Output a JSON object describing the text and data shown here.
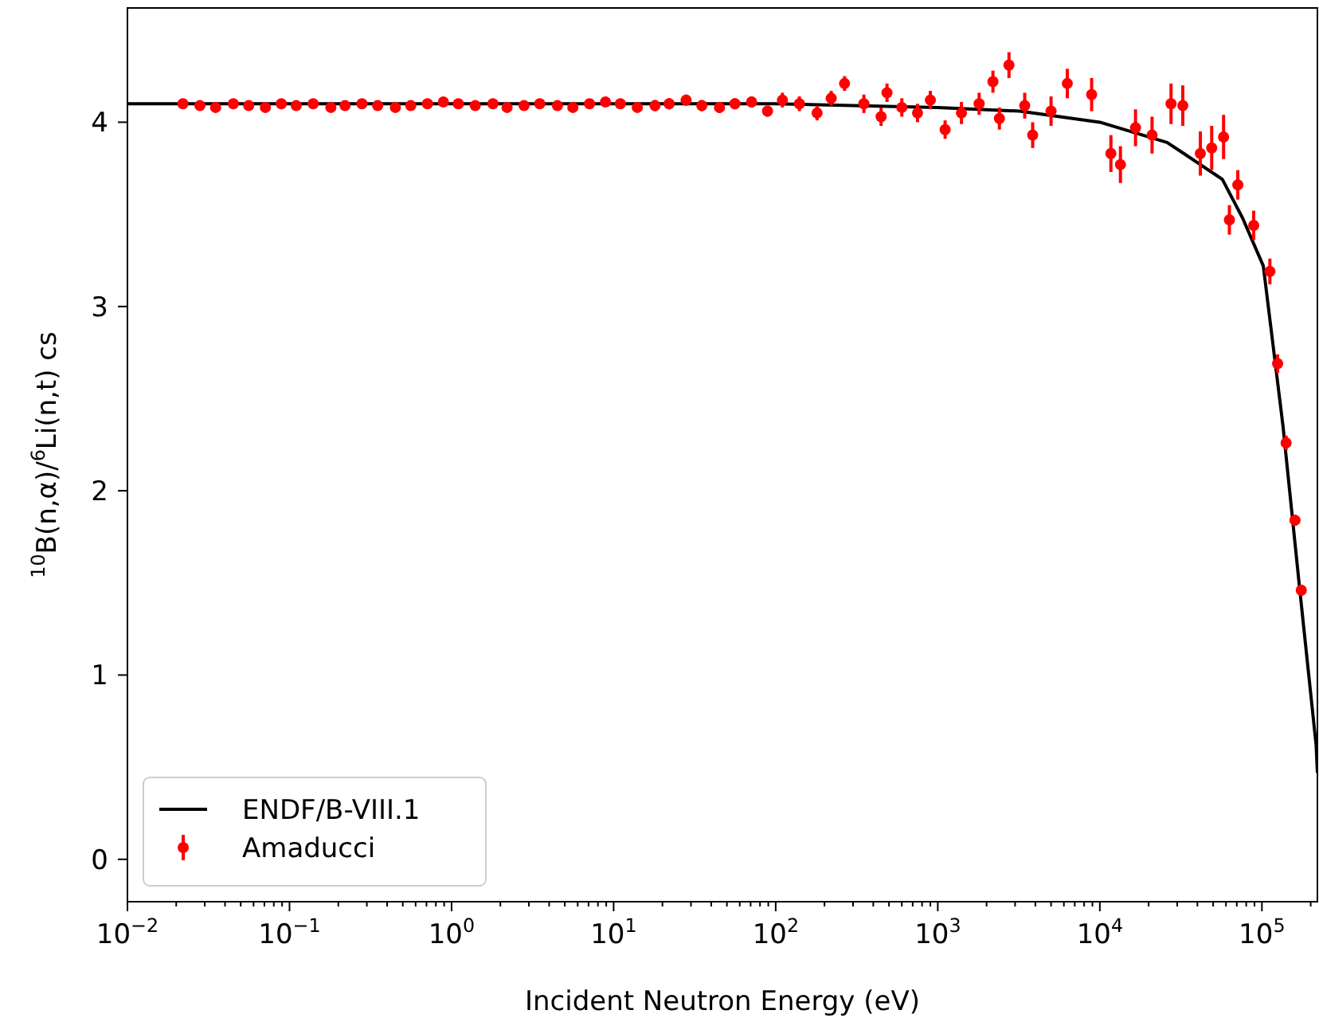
{
  "chart_data": {
    "type": "scatter",
    "xlabel": "Incident Neutron Energy (eV)",
    "ylabel": "$^{10}$B(n,α)/$^{6}$Li(n,t) cs",
    "log": "x",
    "grid": false,
    "legend": "bottom left",
    "xlim": [
      0.01,
      220000
    ],
    "ylim": [
      -0.23,
      4.62
    ],
    "yticks": [
      0,
      1,
      2,
      3,
      4
    ],
    "xticks": [
      {
        "value": 0.01,
        "label": "10$^{−2}$"
      },
      {
        "value": 0.1,
        "label": "10$^{−1}$"
      },
      {
        "value": 1,
        "label": "10$^{0}$"
      },
      {
        "value": 10,
        "label": "10$^{1}$"
      },
      {
        "value": 100,
        "label": "10$^{2}$"
      },
      {
        "value": 1000,
        "label": "10$^{3}$"
      },
      {
        "value": 10000,
        "label": "10$^{4}$"
      },
      {
        "value": 100000,
        "label": "10$^{5}$"
      },
      {
        "value": 0.02,
        "label": null
      },
      {
        "value": 0.03,
        "label": null
      },
      {
        "value": 0.04,
        "label": null
      },
      {
        "value": 0.05,
        "label": null
      },
      {
        "value": 0.06,
        "label": null
      },
      {
        "value": 0.07,
        "label": null
      },
      {
        "value": 0.08,
        "label": null
      },
      {
        "value": 0.09,
        "label": null
      },
      {
        "value": 0.2,
        "label": null
      },
      {
        "value": 0.3,
        "label": null
      },
      {
        "value": 0.4,
        "label": null
      },
      {
        "value": 0.5,
        "label": null
      },
      {
        "value": 0.6,
        "label": null
      },
      {
        "value": 0.7,
        "label": null
      },
      {
        "value": 0.8,
        "label": null
      },
      {
        "value": 0.9,
        "label": null
      },
      {
        "value": 2,
        "label": null
      },
      {
        "value": 3,
        "label": null
      },
      {
        "value": 4,
        "label": null
      },
      {
        "value": 5,
        "label": null
      },
      {
        "value": 6,
        "label": null
      },
      {
        "value": 7,
        "label": null
      },
      {
        "value": 8,
        "label": null
      },
      {
        "value": 9,
        "label": null
      },
      {
        "value": 20,
        "label": null
      },
      {
        "value": 30,
        "label": null
      },
      {
        "value": 40,
        "label": null
      },
      {
        "value": 50,
        "label": null
      },
      {
        "value": 60,
        "label": null
      },
      {
        "value": 70,
        "label": null
      },
      {
        "value": 80,
        "label": null
      },
      {
        "value": 90,
        "label": null
      },
      {
        "value": 200,
        "label": null
      },
      {
        "value": 300,
        "label": null
      },
      {
        "value": 400,
        "label": null
      },
      {
        "value": 500,
        "label": null
      },
      {
        "value": 600,
        "label": null
      },
      {
        "value": 700,
        "label": null
      },
      {
        "value": 800,
        "label": null
      },
      {
        "value": 900,
        "label": null
      },
      {
        "value": 2000,
        "label": null
      },
      {
        "value": 3000,
        "label": null
      },
      {
        "value": 4000,
        "label": null
      },
      {
        "value": 5000,
        "label": null
      },
      {
        "value": 6000,
        "label": null
      },
      {
        "value": 7000,
        "label": null
      },
      {
        "value": 8000,
        "label": null
      },
      {
        "value": 9000,
        "label": null
      },
      {
        "value": 20000,
        "label": null
      },
      {
        "value": 30000,
        "label": null
      },
      {
        "value": 40000,
        "label": null
      },
      {
        "value": 50000,
        "label": null
      },
      {
        "value": 60000,
        "label": null
      },
      {
        "value": 70000,
        "label": null
      },
      {
        "value": 80000,
        "label": null
      },
      {
        "value": 90000,
        "label": null
      },
      {
        "value": 200000,
        "label": null
      }
    ],
    "series": [
      {
        "name": "ENDF/B-VIII.1",
        "type": "line",
        "color": "#000000",
        "line_style": "solid",
        "x": [
          0.01,
          1,
          100,
          1000,
          3200,
          10000,
          26000,
          33000,
          57000,
          76000,
          102000,
          135000,
          170000,
          216000,
          220000
        ],
        "values": [
          4.1,
          4.1,
          4.1,
          4.08,
          4.06,
          4.0,
          3.89,
          3.83,
          3.69,
          3.48,
          3.22,
          2.35,
          1.49,
          0.62,
          0.47
        ]
      },
      {
        "name": "Amaducci",
        "color": "#ff0000",
        "marker": "circle",
        "x": [
          0.022,
          0.028,
          0.035,
          0.045,
          0.056,
          0.071,
          0.089,
          0.11,
          0.14,
          0.18,
          0.22,
          0.28,
          0.35,
          0.45,
          0.56,
          0.71,
          0.89,
          1.1,
          1.4,
          1.8,
          2.2,
          2.8,
          3.5,
          4.5,
          5.6,
          7.1,
          8.9,
          11,
          14,
          18,
          22,
          28,
          35,
          45,
          56,
          71,
          89,
          110,
          140,
          180,
          220,
          266,
          350,
          447,
          486,
          600,
          750,
          900,
          1110,
          1400,
          1800,
          2190,
          2400,
          2750,
          3440,
          3850,
          5000,
          6300,
          8900,
          11700,
          13400,
          16600,
          21000,
          27500,
          32500,
          41700,
          49000,
          58000,
          63000,
          71000,
          89000,
          112000,
          125000,
          141000,
          160000,
          175000
        ],
        "values": [
          4.1,
          4.09,
          4.08,
          4.1,
          4.09,
          4.08,
          4.1,
          4.09,
          4.1,
          4.08,
          4.09,
          4.1,
          4.09,
          4.08,
          4.09,
          4.1,
          4.11,
          4.1,
          4.09,
          4.1,
          4.08,
          4.09,
          4.1,
          4.09,
          4.08,
          4.1,
          4.11,
          4.1,
          4.08,
          4.09,
          4.1,
          4.12,
          4.09,
          4.08,
          4.1,
          4.11,
          4.06,
          4.12,
          4.1,
          4.05,
          4.13,
          4.21,
          4.1,
          4.03,
          4.16,
          4.08,
          4.05,
          4.12,
          3.96,
          4.05,
          4.1,
          4.22,
          4.02,
          4.31,
          4.09,
          3.93,
          4.06,
          4.21,
          4.15,
          3.83,
          3.77,
          3.97,
          3.93,
          4.1,
          4.09,
          3.83,
          3.86,
          3.92,
          3.47,
          3.66,
          3.44,
          3.19,
          2.69,
          2.26,
          1.84,
          1.46
        ],
        "errors": [
          0.02,
          0.02,
          0.02,
          0.02,
          0.02,
          0.02,
          0.02,
          0.02,
          0.02,
          0.02,
          0.02,
          0.02,
          0.02,
          0.02,
          0.02,
          0.02,
          0.02,
          0.02,
          0.02,
          0.02,
          0.02,
          0.02,
          0.02,
          0.02,
          0.02,
          0.02,
          0.02,
          0.02,
          0.02,
          0.03,
          0.03,
          0.03,
          0.03,
          0.03,
          0.03,
          0.03,
          0.03,
          0.04,
          0.04,
          0.04,
          0.04,
          0.04,
          0.05,
          0.05,
          0.05,
          0.05,
          0.05,
          0.05,
          0.05,
          0.06,
          0.06,
          0.06,
          0.06,
          0.07,
          0.07,
          0.07,
          0.08,
          0.08,
          0.09,
          0.1,
          0.1,
          0.1,
          0.1,
          0.11,
          0.11,
          0.12,
          0.12,
          0.12,
          0.08,
          0.08,
          0.08,
          0.07,
          0.05,
          0.04,
          0.03,
          0.03
        ]
      }
    ]
  }
}
